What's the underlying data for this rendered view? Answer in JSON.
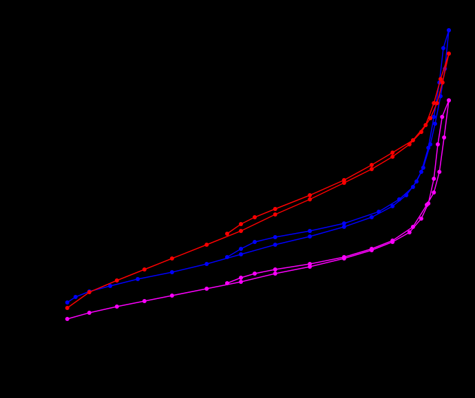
{
  "chart_data": {
    "type": "line",
    "xlim": [
      0,
      1
    ],
    "ylim": [
      0,
      500
    ],
    "background": "#000000",
    "series": [
      {
        "color": "#0000ff",
        "x": [
          0.017,
          0.038,
          0.073,
          0.126,
          0.196,
          0.283,
          0.371,
          0.458,
          0.545,
          0.633,
          0.72,
          0.79,
          0.843,
          0.878,
          0.904,
          0.921,
          0.939,
          0.951,
          0.965,
          0.976,
          0.986
        ],
        "values": [
          80,
          88,
          96,
          104,
          114,
          124,
          136,
          150,
          164,
          176,
          190,
          204,
          220,
          236,
          256,
          276,
          310,
          340,
          380,
          420,
          476
        ]
      },
      {
        "color": "#0000ff",
        "x": [
          0.986,
          0.972,
          0.962,
          0.948,
          0.934,
          0.916,
          0.895,
          0.86,
          0.808,
          0.72,
          0.633,
          0.545,
          0.493,
          0.458,
          0.423
        ],
        "values": [
          476,
          450,
          400,
          350,
          305,
          270,
          248,
          230,
          212,
          195,
          184,
          175,
          168,
          158,
          146
        ]
      },
      {
        "color": "#ff0000",
        "x": [
          0.017,
          0.073,
          0.143,
          0.213,
          0.283,
          0.371,
          0.458,
          0.545,
          0.633,
          0.72,
          0.79,
          0.843,
          0.886,
          0.916,
          0.939,
          0.956,
          0.97,
          0.986
        ],
        "values": [
          72,
          95,
          112,
          128,
          144,
          164,
          184,
          208,
          230,
          254,
          274,
          292,
          310,
          328,
          348,
          370,
          400,
          442
        ]
      },
      {
        "color": "#ff0000",
        "x": [
          0.986,
          0.965,
          0.948,
          0.927,
          0.895,
          0.843,
          0.79,
          0.72,
          0.633,
          0.545,
          0.493,
          0.458,
          0.423
        ],
        "values": [
          442,
          405,
          370,
          338,
          316,
          298,
          280,
          258,
          236,
          216,
          204,
          194,
          180
        ]
      },
      {
        "color": "#ff00ff",
        "x": [
          0.017,
          0.073,
          0.143,
          0.213,
          0.283,
          0.371,
          0.458,
          0.545,
          0.633,
          0.72,
          0.79,
          0.843,
          0.886,
          0.916,
          0.934,
          0.948,
          0.958,
          0.969,
          0.986
        ],
        "values": [
          56,
          65,
          74,
          82,
          90,
          100,
          110,
          122,
          132,
          144,
          156,
          168,
          182,
          202,
          224,
          260,
          310,
          350,
          374
        ]
      },
      {
        "color": "#ff00ff",
        "x": [
          0.986,
          0.974,
          0.962,
          0.948,
          0.93,
          0.895,
          0.843,
          0.79,
          0.72,
          0.633,
          0.545,
          0.493,
          0.458,
          0.423
        ],
        "values": [
          374,
          320,
          270,
          240,
          222,
          190,
          170,
          158,
          146,
          136,
          128,
          122,
          116,
          108
        ]
      }
    ]
  }
}
